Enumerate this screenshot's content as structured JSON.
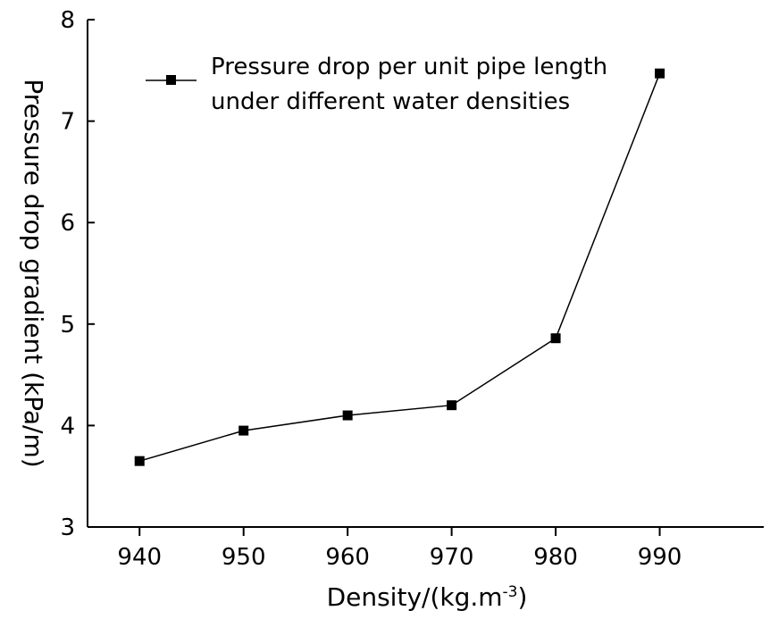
{
  "chart_data": {
    "type": "line",
    "xlabel": "Density/(kg.m",
    "xlabel_sup": "-3",
    "xlabel_end": ")",
    "ylabel": "Pressure drop gradient (kPa/m)",
    "xlim": [
      935,
      1000
    ],
    "ylim": [
      3,
      8
    ],
    "x_ticks": [
      940,
      950,
      960,
      970,
      980,
      990
    ],
    "y_ticks": [
      3,
      4,
      5,
      6,
      7,
      8
    ],
    "legend_position": "top-left",
    "grid": false,
    "series": [
      {
        "name": "Pressure drop per unit pipe length",
        "name_line2": "under different water densities",
        "marker": "square",
        "color": "#000000",
        "x": [
          940,
          950,
          960,
          970,
          980,
          990
        ],
        "y": [
          3.65,
          3.95,
          4.1,
          4.2,
          4.86,
          7.47
        ]
      }
    ]
  }
}
